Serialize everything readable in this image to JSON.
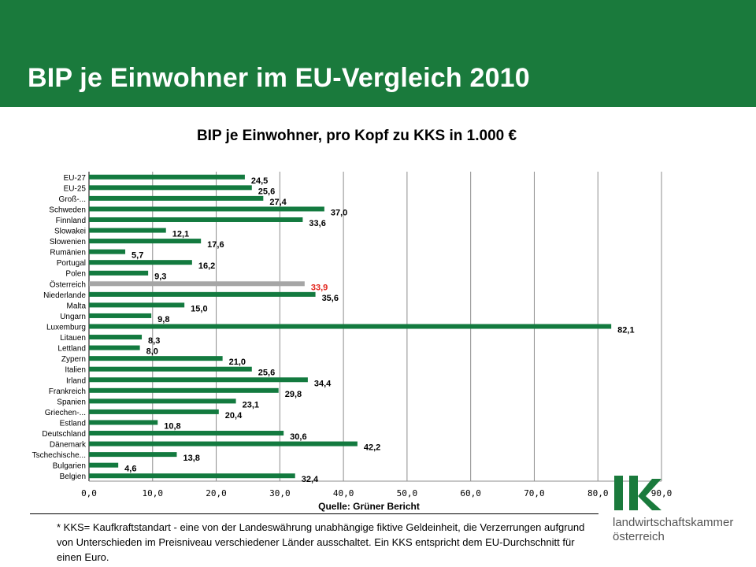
{
  "header": {
    "title": "BIP je Einwohner im EU-Vergleich 2010"
  },
  "colors": {
    "brand_green": "#1a7a3c",
    "bar_green": "#137a3f",
    "highlight_bar": "#a6a6a6",
    "highlight_label": "#e2231a"
  },
  "chart_data": {
    "type": "bar",
    "orientation": "horizontal",
    "title": "BIP je Einwohner, pro Kopf zu KKS in 1.000 €",
    "xlabel": "Quelle: Grüner Bericht",
    "ylabel": "",
    "xlim": [
      0,
      90
    ],
    "xticks": [
      "0,0",
      "10,0",
      "20,0",
      "30,0",
      "40,0",
      "50,0",
      "60,0",
      "70,0",
      "80,0",
      "90,0"
    ],
    "grid": "vertical",
    "legend": "none",
    "categories": [
      "EU-27",
      "EU-25",
      "Groß-...",
      "Schweden",
      "Finnland",
      "Slowakei",
      "Slowenien",
      "Rumänien",
      "Portugal",
      "Polen",
      "Österreich",
      "Niederlande",
      "Malta",
      "Ungarn",
      "Luxemburg",
      "Litauen",
      "Lettland",
      "Zypern",
      "Italien",
      "Irland",
      "Frankreich",
      "Spanien",
      "Griechen-...",
      "Estland",
      "Deutschland",
      "Dänemark",
      "Tschechische...",
      "Bulgarien",
      "Belgien"
    ],
    "values": [
      24.5,
      25.6,
      27.4,
      37.0,
      33.6,
      12.1,
      17.6,
      5.7,
      16.2,
      9.3,
      33.9,
      35.6,
      15.0,
      9.8,
      82.1,
      8.3,
      8.0,
      21.0,
      25.6,
      34.4,
      29.8,
      23.1,
      20.4,
      10.8,
      30.6,
      42.2,
      13.8,
      4.6,
      32.4
    ],
    "value_labels": [
      "24,5",
      "25,6",
      "27,4",
      "37,0",
      "33,6",
      "12,1",
      "17,6",
      "5,7",
      "16,2",
      "9,3",
      "33,9",
      "35,6",
      "15,0",
      "9,8",
      "82,1",
      "8,3",
      "8,0",
      "21,0",
      "25,6",
      "34,4",
      "29,8",
      "23,1",
      "20,4",
      "10,8",
      "30,6",
      "42,2",
      "13,8",
      "4,6",
      "32,4"
    ],
    "highlight_category": "Österreich"
  },
  "footnote": "* KKS= Kaufkraftstandart - eine von der Landeswährung unabhängige fiktive Geldeinheit, die Verzerrungen aufgrund von Unterschieden im Preisniveau verschiedener Länder ausschaltet. Ein KKS entspricht dem EU-Durchschnitt für einen Euro.",
  "logo": {
    "mark": "lk",
    "line1": "landwirtschaftskammer",
    "line2": "österreich"
  }
}
